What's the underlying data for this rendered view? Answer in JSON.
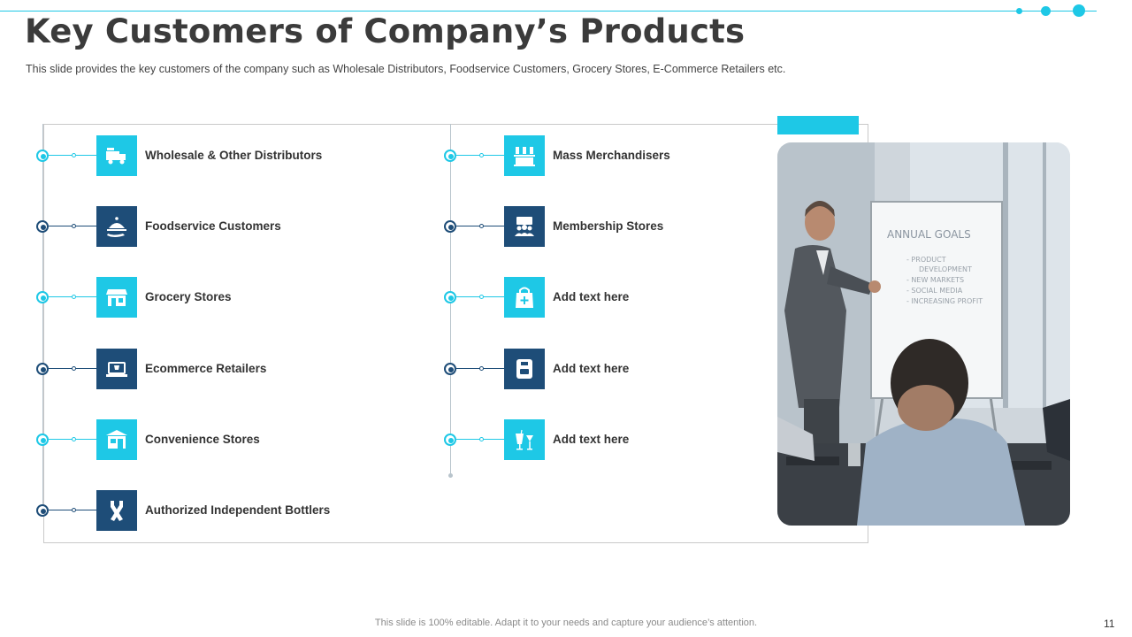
{
  "title": "Key Customers of Company’s Products",
  "subtitle": "This slide provides  the key customers of the company such as Wholesale Distributors, Foodservice  Customers, Grocery Stores, E-Commerce Retailers etc.",
  "customers_left": [
    {
      "label": "Wholesale & Other Distributors",
      "icon": "truck-icon",
      "style": "light"
    },
    {
      "label": "Foodservice Customers",
      "icon": "serving-tray-icon",
      "style": "dark"
    },
    {
      "label": "Grocery Stores",
      "icon": "storefront-icon",
      "style": "light"
    },
    {
      "label": "Ecommerce Retailers",
      "icon": "laptop-shopping-icon",
      "style": "dark"
    },
    {
      "label": "Convenience Stores",
      "icon": "shop-icon",
      "style": "light"
    },
    {
      "label": "Authorized Independent Bottlers",
      "icon": "bottles-icon",
      "style": "dark"
    }
  ],
  "customers_right": [
    {
      "label": "Mass Merchandisers",
      "icon": "products-shelf-icon",
      "style": "light"
    },
    {
      "label": "Membership Stores",
      "icon": "membership-group-icon",
      "style": "dark"
    },
    {
      "label": "Add text here",
      "icon": "shopping-bag-plus-icon",
      "style": "light"
    },
    {
      "label": "Add text here",
      "icon": "package-icon",
      "style": "dark"
    },
    {
      "label": "Add text here",
      "icon": "drinks-icon",
      "style": "light"
    }
  ],
  "photo": {
    "whiteboard_title": "ANNUAL GOALS",
    "whiteboard_lines": [
      "- PRODUCT",
      "DEVELOPMENT",
      "- NEW MARKETS",
      "- SOCIAL MEDIA",
      "- INCREASING PROFIT"
    ]
  },
  "footer": "This slide is 100% editable. Adapt it to your needs and capture your audience’s attention.",
  "page_number": "11",
  "colors": {
    "accent": "#1ec8e6",
    "dark": "#1e4d78"
  }
}
